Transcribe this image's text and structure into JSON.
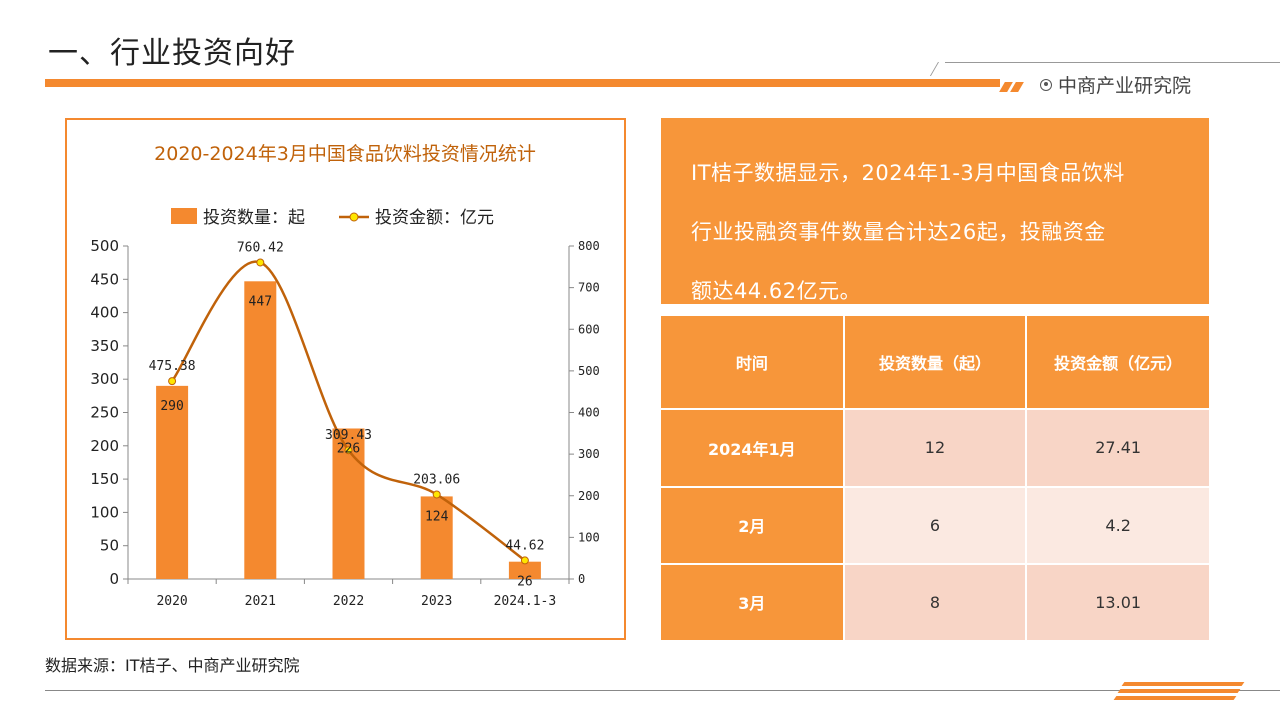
{
  "header": {
    "title": "一、行业投资向好",
    "brand": "中商产业研究院"
  },
  "colors": {
    "accent": "#F4892F",
    "box_orange": "#F7963A",
    "line": "#C0620A",
    "marker": "#FFE600",
    "row_light": "#FBE9E1",
    "row_mid": "#F8D5C6"
  },
  "chart_data": {
    "type": "bar",
    "title": "2020-2024年3月中国食品饮料投资情况统计",
    "categories": [
      "2020",
      "2021",
      "2022",
      "2023",
      "2024.1-3"
    ],
    "series": [
      {
        "name": "投资数量：起",
        "type": "bar",
        "axis": "left",
        "values": [
          290,
          447,
          226,
          124,
          26
        ]
      },
      {
        "name": "投资金额：亿元",
        "type": "line",
        "axis": "right",
        "values": [
          475.38,
          760.42,
          309.43,
          203.06,
          44.62
        ]
      }
    ],
    "y_left": {
      "min": 0,
      "max": 500,
      "step": 50
    },
    "y_right": {
      "min": 0,
      "max": 800,
      "step": 100
    },
    "legend_position": "top-center",
    "grid": false
  },
  "summary": {
    "lines": [
      "IT桔子数据显示，2024年1-3月中国食品饮料",
      "行业投融资事件数量合计达26起，投融资金",
      "额达44.62亿元。"
    ]
  },
  "table": {
    "headers": [
      "时间",
      "投资数量（起）",
      "投资金额（亿元）"
    ],
    "rows": [
      [
        "2024年1月",
        "12",
        "27.41"
      ],
      [
        "2月",
        "6",
        "4.2"
      ],
      [
        "3月",
        "8",
        "13.01"
      ]
    ]
  },
  "footer": {
    "source": "数据来源：IT桔子、中商产业研究院"
  }
}
